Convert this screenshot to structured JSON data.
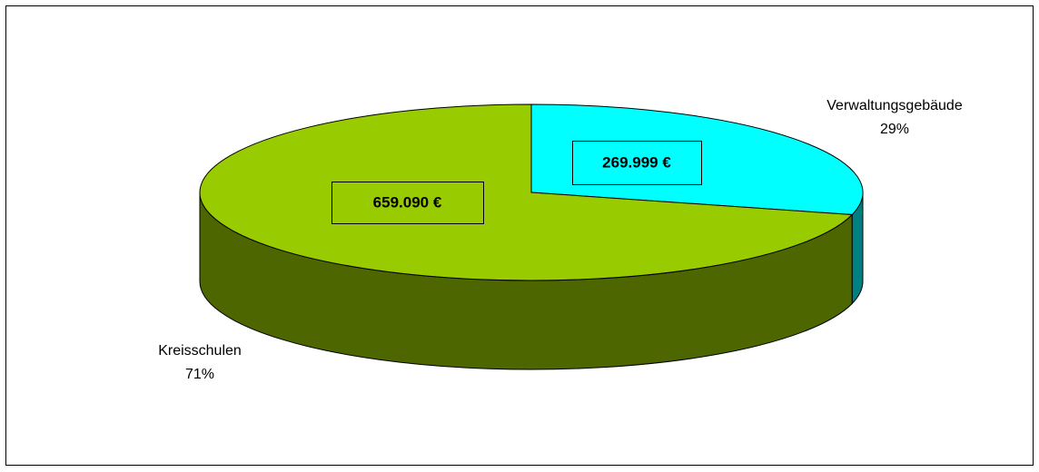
{
  "chart_data": {
    "type": "pie3d",
    "categories": [
      "Verwaltungsgebäude",
      "Kreisschulen"
    ],
    "values": [
      269999,
      659090
    ],
    "value_labels": [
      "269.999 €",
      "659.090 €"
    ],
    "percent_values": [
      29,
      71
    ],
    "percent_labels": [
      "29%",
      "71%"
    ],
    "colors": [
      "#00ffff",
      "#99cc00"
    ],
    "side_colors": [
      "#008080",
      "#4d6600"
    ]
  }
}
